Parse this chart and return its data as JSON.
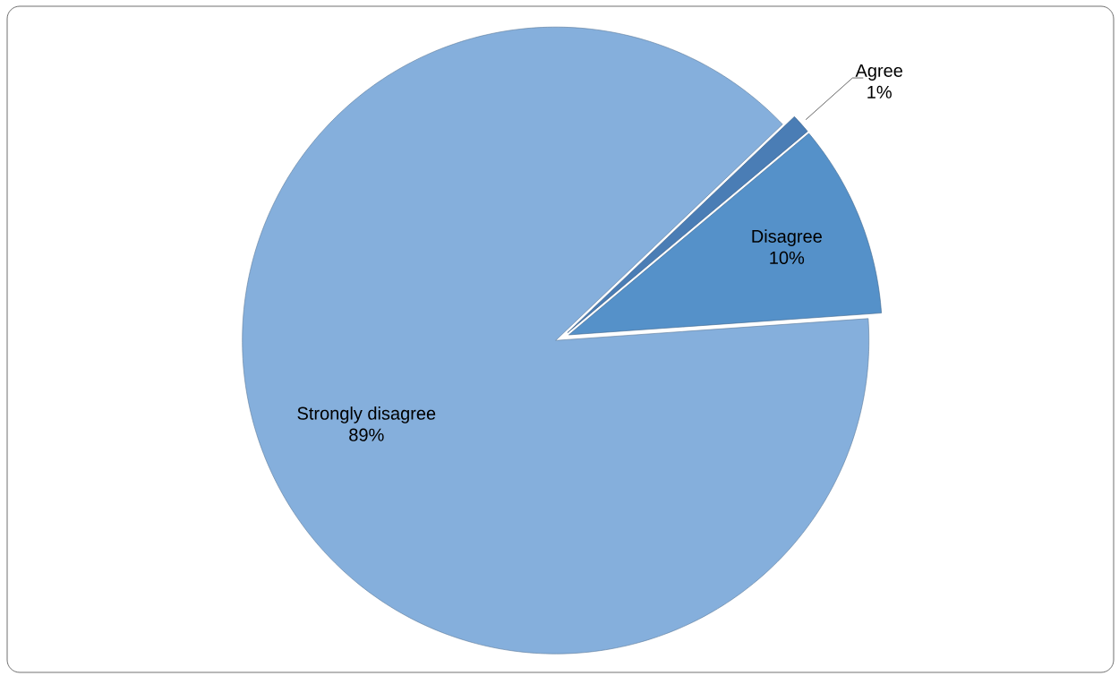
{
  "chart_data": {
    "type": "pie",
    "categories": [
      "Agree",
      "Disagree",
      "Strongly disagree"
    ],
    "values": [
      1,
      10,
      89
    ],
    "value_labels": [
      "1%",
      "10%",
      "89%"
    ],
    "colors": [
      "#4a7db5",
      "#5591c9",
      "#85afdc"
    ]
  }
}
